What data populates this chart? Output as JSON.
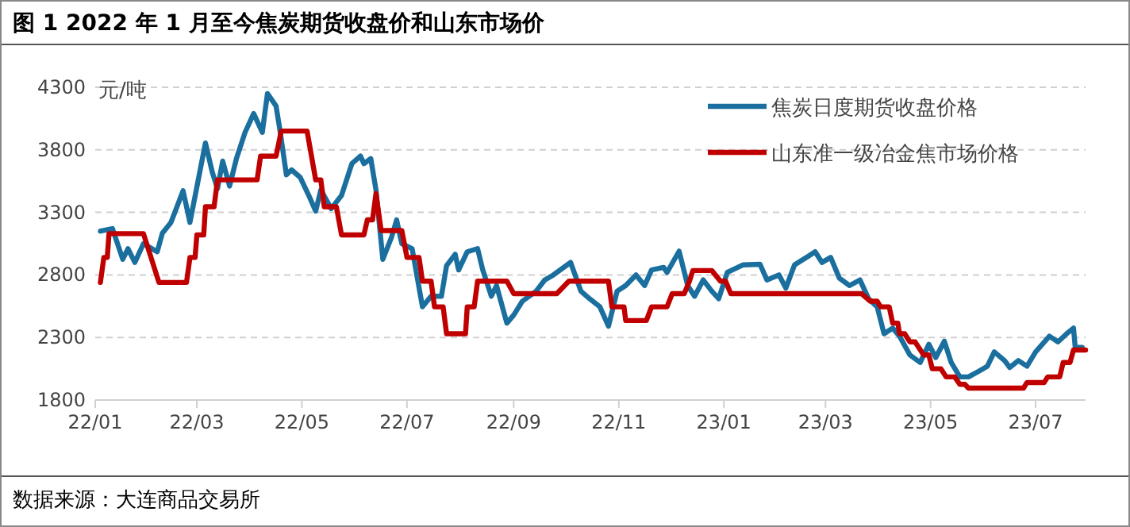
{
  "chart_data": {
    "type": "line",
    "title": "图 1 2022 年 1 月至今焦炭期货收盘价和山东市场价",
    "ylabel": "元/吨",
    "annotations": [
      "数据来源：大连商品交易所"
    ],
    "xlim": [
      "2022-01-01",
      "2023-07-30"
    ],
    "xticks": [
      {
        "value": "2022-01-01",
        "label": "22/01"
      },
      {
        "value": "2022-03-01",
        "label": "22/03"
      },
      {
        "value": "2022-05-01",
        "label": "22/05"
      },
      {
        "value": "2022-07-01",
        "label": "22/07"
      },
      {
        "value": "2022-09-01",
        "label": "22/09"
      },
      {
        "value": "2022-11-01",
        "label": "22/11"
      },
      {
        "value": "2023-01-01",
        "label": "23/01"
      },
      {
        "value": "2023-03-01",
        "label": "23/03"
      },
      {
        "value": "2023-05-01",
        "label": "23/05"
      },
      {
        "value": "2023-07-01",
        "label": "23/07"
      }
    ],
    "ylim": [
      1800,
      4300
    ],
    "yticks": [
      1800,
      2300,
      2800,
      3300,
      3800,
      4300
    ],
    "grid": "y",
    "legend": "top right",
    "line_style": "solid",
    "marker": "none",
    "series": [
      {
        "name": "焦炭日度期货收盘价格",
        "color": "#1a6f9e",
        "x": [
          "2022-01-04",
          "2022-01-11",
          "2022-01-17",
          "2022-01-20",
          "2022-01-24",
          "2022-01-29",
          "2022-02-06",
          "2022-02-09",
          "2022-02-14",
          "2022-02-21",
          "2022-02-25",
          "2022-03-06",
          "2022-03-10",
          "2022-03-13",
          "2022-03-16",
          "2022-03-20",
          "2022-03-24",
          "2022-03-29",
          "2022-04-03",
          "2022-04-08",
          "2022-04-11",
          "2022-04-16",
          "2022-04-18",
          "2022-04-22",
          "2022-04-25",
          "2022-04-30",
          "2022-05-05",
          "2022-05-09",
          "2022-05-12",
          "2022-05-18",
          "2022-05-24",
          "2022-05-30",
          "2022-06-04",
          "2022-06-06",
          "2022-06-10",
          "2022-06-13",
          "2022-06-17",
          "2022-06-22",
          "2022-06-25",
          "2022-06-28",
          "2022-07-04",
          "2022-07-10",
          "2022-07-15",
          "2022-07-19",
          "2022-07-21",
          "2022-07-24",
          "2022-07-29",
          "2022-07-31",
          "2022-08-05",
          "2022-08-11",
          "2022-08-14",
          "2022-08-19",
          "2022-08-22",
          "2022-08-28",
          "2022-09-01",
          "2022-09-06",
          "2022-09-14",
          "2022-09-19",
          "2022-09-24",
          "2022-10-04",
          "2022-10-10",
          "2022-10-15",
          "2022-10-21",
          "2022-10-26",
          "2022-10-31",
          "2022-11-05",
          "2022-11-11",
          "2022-11-16",
          "2022-11-20",
          "2022-11-27",
          "2022-11-29",
          "2022-12-06",
          "2022-12-11",
          "2022-12-15",
          "2022-12-20",
          "2022-12-25",
          "2022-12-29",
          "2023-01-03",
          "2023-01-12",
          "2023-01-22",
          "2023-01-26",
          "2023-02-02",
          "2023-02-06",
          "2023-02-11",
          "2023-02-18",
          "2023-02-23",
          "2023-02-27",
          "2023-03-04",
          "2023-03-09",
          "2023-03-15",
          "2023-03-21",
          "2023-03-26",
          "2023-03-31",
          "2023-04-04",
          "2023-04-09",
          "2023-04-13",
          "2023-04-19",
          "2023-04-25",
          "2023-04-30",
          "2023-05-04",
          "2023-05-09",
          "2023-05-13",
          "2023-05-18",
          "2023-05-23",
          "2023-05-29",
          "2023-06-03",
          "2023-06-07",
          "2023-06-13",
          "2023-06-16",
          "2023-06-21",
          "2023-06-26",
          "2023-07-01",
          "2023-07-09",
          "2023-07-14",
          "2023-07-19",
          "2023-07-23",
          "2023-07-24",
          "2023-07-28"
        ],
        "values": [
          3150,
          3170,
          2925,
          3010,
          2900,
          3050,
          2985,
          3134,
          3220,
          3473,
          3220,
          3855,
          3620,
          3490,
          3710,
          3510,
          3730,
          3940,
          4090,
          3940,
          4250,
          4150,
          3980,
          3600,
          3640,
          3580,
          3435,
          3310,
          3480,
          3330,
          3435,
          3690,
          3750,
          3690,
          3730,
          3480,
          2925,
          3100,
          3240,
          3050,
          3010,
          2545,
          2630,
          2630,
          2630,
          2875,
          2965,
          2840,
          2985,
          3010,
          2840,
          2630,
          2715,
          2415,
          2480,
          2590,
          2670,
          2760,
          2800,
          2900,
          2670,
          2610,
          2545,
          2390,
          2670,
          2715,
          2800,
          2715,
          2840,
          2860,
          2820,
          2990,
          2715,
          2630,
          2760,
          2670,
          2610,
          2820,
          2880,
          2885,
          2760,
          2800,
          2695,
          2880,
          2940,
          2985,
          2900,
          2940,
          2775,
          2715,
          2760,
          2610,
          2545,
          2330,
          2375,
          2310,
          2160,
          2100,
          2245,
          2140,
          2270,
          2100,
          1985,
          1985,
          2030,
          2070,
          2185,
          2115,
          2060,
          2115,
          2070,
          2185,
          2310,
          2265,
          2330,
          2375,
          2220,
          2220
        ]
      },
      {
        "name": "山东准一级冶金焦市场价格",
        "color": "#c00000",
        "x": [
          "2022-01-04",
          "2022-01-06",
          "2022-01-08",
          "2022-01-09",
          "2022-01-29",
          "2022-02-07",
          "2022-02-23",
          "2022-02-25",
          "2022-02-28",
          "2022-03-01",
          "2022-03-05",
          "2022-03-06",
          "2022-03-11",
          "2022-03-13",
          "2022-04-05",
          "2022-04-07",
          "2022-04-16",
          "2022-04-19",
          "2022-05-04",
          "2022-05-09",
          "2022-05-12",
          "2022-05-14",
          "2022-05-21",
          "2022-05-24",
          "2022-06-06",
          "2022-06-08",
          "2022-06-11",
          "2022-06-13",
          "2022-06-16",
          "2022-06-28",
          "2022-07-01",
          "2022-07-08",
          "2022-07-10",
          "2022-07-15",
          "2022-07-17",
          "2022-07-22",
          "2022-07-24",
          "2022-08-04",
          "2022-08-05",
          "2022-08-09",
          "2022-08-11",
          "2022-08-28",
          "2022-09-01",
          "2022-09-26",
          "2022-10-03",
          "2022-10-26",
          "2022-10-28",
          "2022-11-04",
          "2022-11-05",
          "2022-11-17",
          "2022-11-20",
          "2022-11-29",
          "2022-12-02",
          "2022-12-09",
          "2022-12-12",
          "2022-12-14",
          "2022-12-25",
          "2022-12-30",
          "2023-01-02",
          "2023-01-05",
          "2023-03-22",
          "2023-03-27",
          "2023-03-31",
          "2023-04-02",
          "2023-04-07",
          "2023-04-09",
          "2023-04-12",
          "2023-04-13",
          "2023-04-16",
          "2023-04-19",
          "2023-04-22",
          "2023-04-27",
          "2023-04-30",
          "2023-05-02",
          "2023-05-07",
          "2023-05-10",
          "2023-05-15",
          "2023-05-18",
          "2023-05-21",
          "2023-05-23",
          "2023-06-24",
          "2023-06-26",
          "2023-07-06",
          "2023-07-08",
          "2023-07-15",
          "2023-07-17",
          "2023-07-21",
          "2023-07-23",
          "2023-07-30"
        ],
        "values": [
          2740,
          2940,
          2940,
          3130,
          3130,
          2740,
          2740,
          2940,
          2940,
          3120,
          3120,
          3345,
          3345,
          3560,
          3560,
          3750,
          3750,
          3950,
          3950,
          3560,
          3560,
          3345,
          3345,
          3120,
          3120,
          3240,
          3240,
          3450,
          3155,
          3155,
          2940,
          2940,
          2750,
          2750,
          2545,
          2545,
          2330,
          2330,
          2545,
          2545,
          2750,
          2750,
          2650,
          2650,
          2750,
          2750,
          2545,
          2545,
          2435,
          2435,
          2545,
          2545,
          2650,
          2650,
          2750,
          2835,
          2835,
          2750,
          2750,
          2650,
          2650,
          2590,
          2590,
          2545,
          2545,
          2415,
          2415,
          2330,
          2330,
          2265,
          2265,
          2160,
          2160,
          2050,
          2050,
          1985,
          1985,
          1925,
          1925,
          1895,
          1895,
          1940,
          1940,
          1985,
          1985,
          2100,
          2100,
          2200,
          2200
        ]
      }
    ]
  }
}
